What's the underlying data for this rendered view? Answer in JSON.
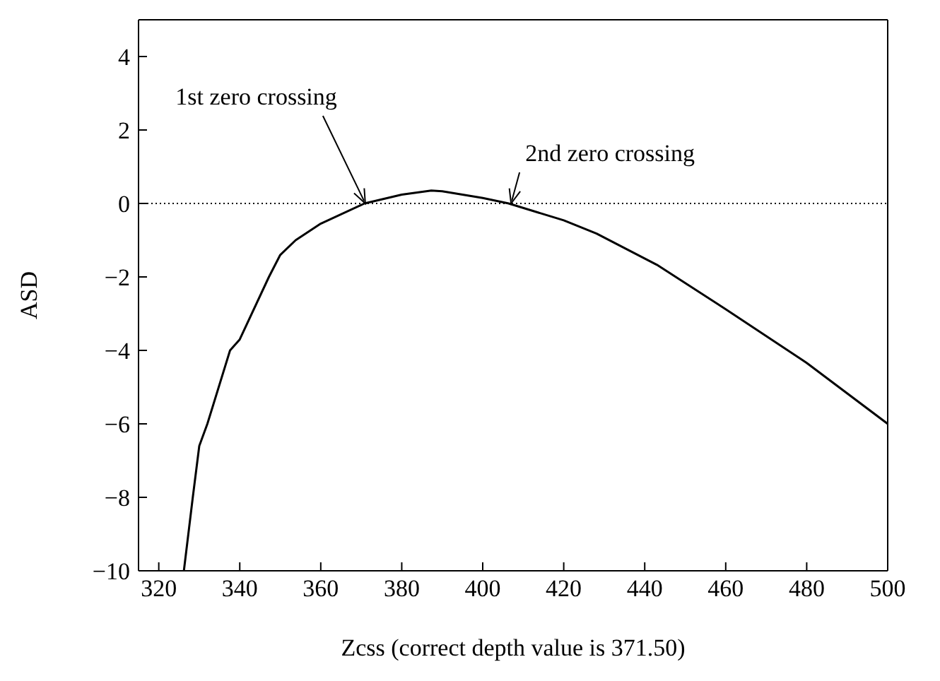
{
  "chart_data": {
    "type": "line",
    "xlabel": "Zcss (correct depth value is 371.50)",
    "ylabel": "ASD",
    "x": [
      326.2,
      328.4,
      330,
      332,
      337.6,
      340,
      347.2,
      350,
      353.8,
      360,
      370.8,
      380,
      387.3,
      390,
      400,
      406.4,
      420,
      428.1,
      443,
      460,
      480,
      500
    ],
    "series": [
      {
        "color": "#000000",
        "values": [
          -10,
          -8,
          -6.6,
          -6,
          -4,
          -3.7,
          -2,
          -1.4,
          -1,
          -0.55,
          0,
          0.24,
          0.35,
          0.33,
          0.15,
          0,
          -0.46,
          -0.82,
          -1.67,
          -2.88,
          -4.34,
          -6
        ]
      }
    ],
    "xlim": [
      315,
      500
    ],
    "xticks": [
      320,
      340,
      360,
      380,
      400,
      420,
      440,
      460,
      480,
      500
    ],
    "ylim": [
      -10,
      5
    ],
    "yticks": [
      -10,
      -8,
      -6,
      -4,
      -2,
      0,
      2,
      4
    ],
    "ref_lines": [
      {
        "axis": "y",
        "value": 0,
        "line_style": "dotted",
        "color": "#000000"
      }
    ],
    "annotations": [
      {
        "text": "1st zero crossing",
        "x": 371,
        "y": 0
      },
      {
        "text": "2nd zero crossing",
        "x": 407,
        "y": 0
      }
    ],
    "marker": "none",
    "line_style": "solid"
  }
}
